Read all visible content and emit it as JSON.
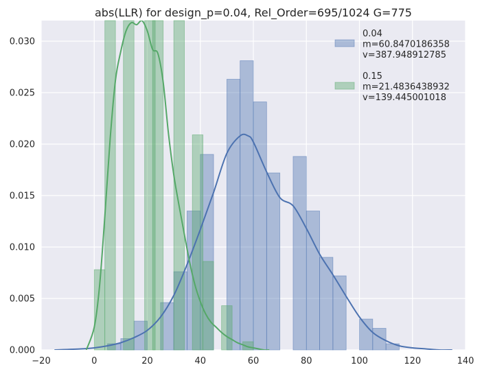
{
  "chart_data": {
    "type": "bar",
    "title": "abs(LLR) for design_p=0.04, Rel_Order=695/1024 G=775",
    "xlabel": "",
    "ylabel": "",
    "xlim": [
      -20,
      140
    ],
    "ylim": [
      0,
      0.032
    ],
    "xticks": [
      -20,
      0,
      20,
      40,
      60,
      80,
      100,
      120,
      140
    ],
    "yticks": [
      0.0,
      0.005,
      0.01,
      0.015,
      0.02,
      0.025,
      0.03
    ],
    "xtick_labels": [
      "−20",
      "0",
      "20",
      "40",
      "60",
      "80",
      "100",
      "120",
      "140"
    ],
    "ytick_labels": [
      "0.000",
      "0.005",
      "0.010",
      "0.015",
      "0.020",
      "0.025",
      "0.030"
    ],
    "grid": true,
    "legend_position": "top-right",
    "series": [
      {
        "name": "0.04",
        "legend_lines": [
          "0.04",
          " m=60.8470186358",
          " v=387.948912785"
        ],
        "color": "#4c72b0",
        "hist_bins": [
          {
            "x0": 5,
            "x1": 10,
            "height": 0.0006
          },
          {
            "x0": 10,
            "x1": 15,
            "height": 0.0011
          },
          {
            "x0": 15,
            "x1": 20,
            "height": 0.0028
          },
          {
            "x0": 25,
            "x1": 30,
            "height": 0.0046
          },
          {
            "x0": 30,
            "x1": 35,
            "height": 0.0076
          },
          {
            "x0": 35,
            "x1": 40,
            "height": 0.0135
          },
          {
            "x0": 40,
            "x1": 45,
            "height": 0.019
          },
          {
            "x0": 50,
            "x1": 55,
            "height": 0.0263
          },
          {
            "x0": 55,
            "x1": 60,
            "height": 0.0281
          },
          {
            "x0": 60,
            "x1": 65,
            "height": 0.0241
          },
          {
            "x0": 65,
            "x1": 70,
            "height": 0.0172
          },
          {
            "x0": 75,
            "x1": 80,
            "height": 0.0188
          },
          {
            "x0": 80,
            "x1": 85,
            "height": 0.0135
          },
          {
            "x0": 85,
            "x1": 90,
            "height": 0.009
          },
          {
            "x0": 90,
            "x1": 95,
            "height": 0.0072
          },
          {
            "x0": 100,
            "x1": 105,
            "height": 0.003
          },
          {
            "x0": 105,
            "x1": 110,
            "height": 0.0021
          },
          {
            "x0": 110,
            "x1": 115,
            "height": 0.0006
          }
        ],
        "kde_x": [
          -15,
          -5,
          0,
          5,
          10,
          15,
          20,
          25,
          30,
          35,
          40,
          45,
          50,
          55,
          58,
          60,
          65,
          70,
          75,
          80,
          85,
          90,
          95,
          100,
          105,
          110,
          115,
          120,
          125,
          130,
          135
        ],
        "kde_y": [
          0.0,
          0.0001,
          0.0002,
          0.0004,
          0.0007,
          0.0012,
          0.0019,
          0.0032,
          0.0053,
          0.0083,
          0.0117,
          0.0153,
          0.0191,
          0.0208,
          0.0208,
          0.0202,
          0.0173,
          0.0148,
          0.014,
          0.0118,
          0.0093,
          0.0073,
          0.0052,
          0.0032,
          0.0017,
          0.0009,
          0.0004,
          0.0002,
          0.0001,
          0.0,
          0.0
        ]
      },
      {
        "name": "0.15",
        "legend_lines": [
          "0.15",
          " m=21.4836438932",
          " v=139.445001018"
        ],
        "color": "#55a868",
        "hist_bins": [
          {
            "x0": 0,
            "x1": 4,
            "height": 0.0078
          },
          {
            "x0": 4,
            "x1": 8,
            "height": 0.032
          },
          {
            "x0": 11,
            "x1": 15,
            "height": 0.032
          },
          {
            "x0": 19,
            "x1": 23,
            "height": 0.032
          },
          {
            "x0": 22,
            "x1": 26,
            "height": 0.032
          },
          {
            "x0": 30,
            "x1": 34,
            "height": 0.032
          },
          {
            "x0": 37,
            "x1": 41,
            "height": 0.0209
          },
          {
            "x0": 41,
            "x1": 45,
            "height": 0.0086
          },
          {
            "x0": 48,
            "x1": 52,
            "height": 0.0043
          },
          {
            "x0": 56,
            "x1": 60,
            "height": 0.0008
          }
        ],
        "kde_x": [
          -3,
          0,
          2,
          4,
          6,
          8,
          10,
          12,
          14,
          16,
          18,
          20,
          22,
          24,
          26,
          28,
          30,
          32,
          34,
          36,
          38,
          40,
          42,
          44,
          46,
          48,
          50,
          52,
          54,
          56,
          58,
          60,
          62,
          64,
          66
        ],
        "kde_y": [
          0.0,
          0.0022,
          0.0062,
          0.013,
          0.0205,
          0.0262,
          0.029,
          0.031,
          0.0318,
          0.0316,
          0.032,
          0.031,
          0.0292,
          0.0288,
          0.026,
          0.021,
          0.017,
          0.014,
          0.0112,
          0.0085,
          0.0063,
          0.0047,
          0.0035,
          0.0027,
          0.0022,
          0.0017,
          0.0013,
          0.001,
          0.0007,
          0.0005,
          0.0003,
          0.0002,
          0.0001,
          0.0,
          0.0
        ]
      }
    ]
  }
}
